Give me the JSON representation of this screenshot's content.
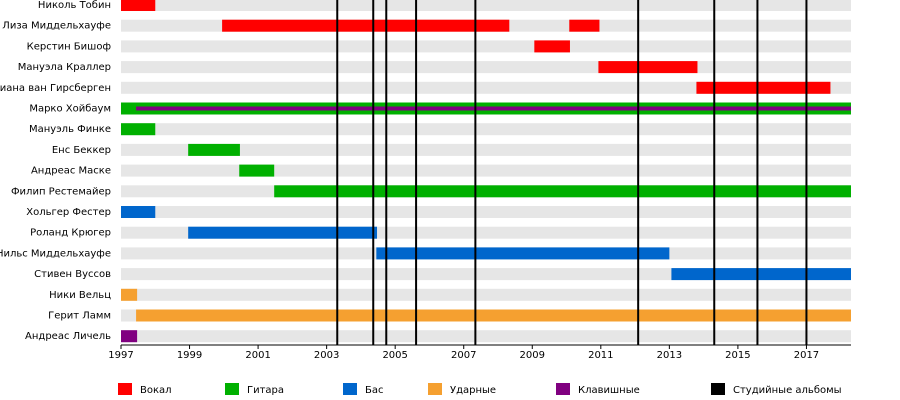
{
  "chart_data": {
    "type": "timeline",
    "categories": [
      "Николь Тобин",
      "Лиза Миддельхауфе",
      "Керстин Бишоф",
      "Мануэла Краллер",
      "Диана ван Гирсберген",
      "Марко Хойбаум",
      "Мануэль Финке",
      "Енс Беккер",
      "Андреас Маске",
      "Филип Рестемайер",
      "Хольгер Фестер",
      "Роланд Крюгер",
      "Нильс Миддельхауфе",
      "Стивен Вуссов",
      "Ники Вельц",
      "Герит Ламм",
      "Андреас Личель"
    ],
    "series": [
      {
        "name": "Вокал",
        "color": "#ff0000",
        "values": [
          {
            "member": "Николь Тобин",
            "start": 1997,
            "end": 1998
          },
          {
            "member": "Лиза Миддельхауфе",
            "start": 1999.95,
            "end": 2008.33
          },
          {
            "member": "Лиза Миддельхауфе",
            "start": 2010.08,
            "end": 2010.96
          },
          {
            "member": "Керстин Бишоф",
            "start": 2009.06,
            "end": 2010.1
          },
          {
            "member": "Мануэла Краллер",
            "start": 2010.93,
            "end": 2013.82
          },
          {
            "member": "Диана ван Гирсберген",
            "start": 2013.79,
            "end": 2017.7
          }
        ]
      },
      {
        "name": "Гитара",
        "color": "#00b000",
        "values": [
          {
            "member": "Марко Хойбаум",
            "start": 1997,
            "end": 2018.3
          },
          {
            "member": "Мануэль Финке",
            "start": 1997,
            "end": 1998
          },
          {
            "member": "Енс Беккер",
            "start": 1998.96,
            "end": 2000.47
          },
          {
            "member": "Андреас Маске",
            "start": 2000.45,
            "end": 2001.47
          },
          {
            "member": "Филип Рестемайер",
            "start": 2001.47,
            "end": 2018.3
          }
        ]
      },
      {
        "name": "Бас",
        "color": "#0066cc",
        "values": [
          {
            "member": "Хольгер Фестер",
            "start": 1997,
            "end": 1998
          },
          {
            "member": "Роланд Крюгер",
            "start": 1998.96,
            "end": 2004.47
          },
          {
            "member": "Нильс Миддельхауфе",
            "start": 2004.45,
            "end": 2013.0
          },
          {
            "member": "Стивен Вуссов",
            "start": 2013.06,
            "end": 2018.3
          }
        ]
      },
      {
        "name": "Ударные",
        "color": "#f5a030",
        "values": [
          {
            "member": "Ники Вельц",
            "start": 1997,
            "end": 1997.47
          },
          {
            "member": "Герит Ламм",
            "start": 1997.44,
            "end": 2018.3
          }
        ]
      },
      {
        "name": "Клавишные",
        "color": "#800080",
        "values": [
          {
            "member": "Марко Хойбаум",
            "start": 1997.44,
            "end": 2018.3
          },
          {
            "member": "Андреас Личель",
            "start": 1997,
            "end": 1997.47
          }
        ]
      }
    ],
    "events": {
      "name": "Студийные альбомы",
      "color": "#000000",
      "x": [
        2003.31,
        2004.36,
        2004.74,
        2005.61,
        2007.34,
        2012.09,
        2014.31,
        2015.57,
        2017.0
      ]
    },
    "xlim": [
      1997,
      2018.3
    ],
    "xticks": [
      1997,
      1999,
      2001,
      2003,
      2005,
      2007,
      2009,
      2011,
      2013,
      2015,
      2017
    ]
  }
}
